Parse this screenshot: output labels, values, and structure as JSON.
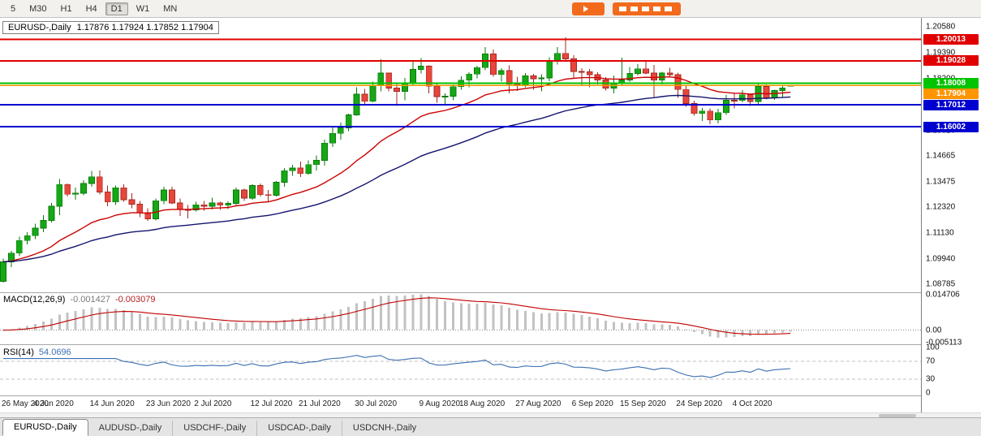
{
  "toolbar": {
    "timeframes": [
      "5",
      "M30",
      "H1",
      "H4",
      "D1",
      "W1",
      "MN"
    ],
    "selected": "D1"
  },
  "chart": {
    "title": "EURUSD-,Daily",
    "ohlc_text": "1.17876 1.17924 1.17852 1.17904",
    "price_axis_labels": [
      "1.20580",
      "1.19390",
      "1.18200",
      "1.17010",
      "1.15820",
      "1.14665",
      "1.13475",
      "1.12320",
      "1.11130",
      "1.09940",
      "1.08785"
    ]
  },
  "levels": [
    {
      "value": 1.20013,
      "label": "1.20013",
      "color": "#e00000",
      "width": 2
    },
    {
      "value": 1.19028,
      "label": "1.19028",
      "color": "#e00000",
      "width": 2
    },
    {
      "value": 1.18008,
      "label": "1.18008",
      "color": "#00c400",
      "width": 2
    },
    {
      "value": 1.17904,
      "label": "1.17904",
      "color": "#ff9500",
      "width": 1.5,
      "current": true
    },
    {
      "value": 1.17012,
      "label": "1.17012",
      "color": "#0000d0",
      "width": 2
    },
    {
      "value": 1.16002,
      "label": "1.16002",
      "color": "#0000d0",
      "width": 2
    }
  ],
  "chart_data": {
    "type": "candlestick",
    "title": "EURUSD- Daily",
    "symbol": "EURUSD-",
    "timeframe": "Daily",
    "ylim": [
      1.084,
      1.21
    ],
    "overlays": [
      {
        "name": "ma-fast",
        "period": 20,
        "color": "#cc0000"
      },
      {
        "name": "ma-slow",
        "period": 45,
        "color": "#14146e"
      }
    ],
    "candles": [
      [
        1.089,
        1.0995,
        1.0885,
        1.098
      ],
      [
        1.098,
        1.103,
        1.0955,
        1.102
      ],
      [
        1.102,
        1.1095,
        1.1005,
        1.1078
      ],
      [
        1.1078,
        1.1115,
        1.106,
        1.11
      ],
      [
        1.11,
        1.1155,
        1.1085,
        1.1135
      ],
      [
        1.1135,
        1.1195,
        1.1115,
        1.117
      ],
      [
        1.117,
        1.125,
        1.116,
        1.1235
      ],
      [
        1.1235,
        1.136,
        1.1195,
        1.1335
      ],
      [
        1.1335,
        1.134,
        1.128,
        1.129
      ],
      [
        1.129,
        1.132,
        1.1265,
        1.1295
      ],
      [
        1.1295,
        1.1355,
        1.1285,
        1.134
      ],
      [
        1.134,
        1.1398,
        1.1325,
        1.137
      ],
      [
        1.137,
        1.14,
        1.129,
        1.13
      ],
      [
        1.13,
        1.133,
        1.1235,
        1.1255
      ],
      [
        1.1255,
        1.133,
        1.124,
        1.132
      ],
      [
        1.132,
        1.1335,
        1.1255,
        1.1265
      ],
      [
        1.1265,
        1.1295,
        1.1225,
        1.1245
      ],
      [
        1.1245,
        1.126,
        1.1185,
        1.1205
      ],
      [
        1.1205,
        1.1225,
        1.1168,
        1.1177
      ],
      [
        1.1177,
        1.127,
        1.117,
        1.126
      ],
      [
        1.126,
        1.1325,
        1.1245,
        1.131
      ],
      [
        1.131,
        1.1325,
        1.1245,
        1.125
      ],
      [
        1.125,
        1.127,
        1.119,
        1.122
      ],
      [
        1.122,
        1.124,
        1.118,
        1.1218
      ],
      [
        1.1218,
        1.1255,
        1.121,
        1.1242
      ],
      [
        1.1242,
        1.126,
        1.1215,
        1.1235
      ],
      [
        1.1235,
        1.1275,
        1.122,
        1.125
      ],
      [
        1.125,
        1.1255,
        1.1218,
        1.124
      ],
      [
        1.124,
        1.1258,
        1.1222,
        1.1248
      ],
      [
        1.1248,
        1.132,
        1.124,
        1.131
      ],
      [
        1.131,
        1.1315,
        1.126,
        1.1272
      ],
      [
        1.1272,
        1.1335,
        1.1265,
        1.133
      ],
      [
        1.133,
        1.134,
        1.128,
        1.1288
      ],
      [
        1.1288,
        1.131,
        1.1255,
        1.1285
      ],
      [
        1.1285,
        1.135,
        1.128,
        1.1345
      ],
      [
        1.1345,
        1.141,
        1.1325,
        1.1398
      ],
      [
        1.1398,
        1.1425,
        1.1375,
        1.141
      ],
      [
        1.141,
        1.144,
        1.137,
        1.1385
      ],
      [
        1.1385,
        1.1445,
        1.138,
        1.1426
      ],
      [
        1.1426,
        1.1468,
        1.14,
        1.1446
      ],
      [
        1.1446,
        1.154,
        1.1422,
        1.1525
      ],
      [
        1.1525,
        1.1601,
        1.1507,
        1.157
      ],
      [
        1.157,
        1.162,
        1.154,
        1.1595
      ],
      [
        1.1595,
        1.166,
        1.158,
        1.1655
      ],
      [
        1.1655,
        1.1781,
        1.165,
        1.175
      ],
      [
        1.175,
        1.1773,
        1.17,
        1.1717
      ],
      [
        1.1717,
        1.1807,
        1.1712,
        1.179
      ],
      [
        1.179,
        1.1909,
        1.1762,
        1.1847
      ],
      [
        1.1847,
        1.1849,
        1.1762,
        1.1778
      ],
      [
        1.1778,
        1.1797,
        1.1696,
        1.1763
      ],
      [
        1.1763,
        1.1824,
        1.1721,
        1.1803
      ],
      [
        1.1803,
        1.1906,
        1.1793,
        1.1863
      ],
      [
        1.1863,
        1.1916,
        1.1844,
        1.1878
      ],
      [
        1.1878,
        1.1882,
        1.1754,
        1.1786
      ],
      [
        1.1786,
        1.18,
        1.171,
        1.1738
      ],
      [
        1.1738,
        1.1754,
        1.1698,
        1.174
      ],
      [
        1.174,
        1.1795,
        1.1722,
        1.1784
      ],
      [
        1.1784,
        1.1831,
        1.177,
        1.1814
      ],
      [
        1.1814,
        1.1851,
        1.1782,
        1.1842
      ],
      [
        1.1842,
        1.188,
        1.1822,
        1.1872
      ],
      [
        1.1872,
        1.1966,
        1.186,
        1.1934
      ],
      [
        1.1934,
        1.1954,
        1.183,
        1.184
      ],
      [
        1.184,
        1.1869,
        1.1808,
        1.1858
      ],
      [
        1.1858,
        1.1882,
        1.1754,
        1.1796
      ],
      [
        1.1796,
        1.183,
        1.1765,
        1.179
      ],
      [
        1.179,
        1.1846,
        1.1782,
        1.1833
      ],
      [
        1.1833,
        1.1842,
        1.177,
        1.182
      ],
      [
        1.182,
        1.184,
        1.1763,
        1.1824
      ],
      [
        1.1824,
        1.192,
        1.181,
        1.1903
      ],
      [
        1.1903,
        1.1965,
        1.1885,
        1.1937
      ],
      [
        1.1937,
        1.2011,
        1.19,
        1.1912
      ],
      [
        1.1912,
        1.1928,
        1.1823,
        1.1854
      ],
      [
        1.1854,
        1.1868,
        1.1789,
        1.1852
      ],
      [
        1.1852,
        1.1865,
        1.1781,
        1.1839
      ],
      [
        1.1839,
        1.185,
        1.1795,
        1.1815
      ],
      [
        1.1815,
        1.1828,
        1.1766,
        1.1777
      ],
      [
        1.1777,
        1.1835,
        1.1753,
        1.1801
      ],
      [
        1.1801,
        1.1917,
        1.179,
        1.1815
      ],
      [
        1.1815,
        1.1875,
        1.1805,
        1.1845
      ],
      [
        1.1845,
        1.1888,
        1.1835,
        1.1866
      ],
      [
        1.1866,
        1.19,
        1.184,
        1.1846
      ],
      [
        1.1846,
        1.1884,
        1.1737,
        1.1815
      ],
      [
        1.1815,
        1.1852,
        1.1795,
        1.1847
      ],
      [
        1.1847,
        1.1871,
        1.1827,
        1.1839
      ],
      [
        1.1839,
        1.1848,
        1.1732,
        1.1771
      ],
      [
        1.1771,
        1.179,
        1.1692,
        1.1707
      ],
      [
        1.1707,
        1.1719,
        1.1651,
        1.1661
      ],
      [
        1.1661,
        1.1686,
        1.1626,
        1.1672
      ],
      [
        1.1672,
        1.1685,
        1.1612,
        1.1631
      ],
      [
        1.1631,
        1.1683,
        1.1615,
        1.1665
      ],
      [
        1.1665,
        1.1745,
        1.1655,
        1.1722
      ],
      [
        1.1722,
        1.1755,
        1.1685,
        1.1721
      ],
      [
        1.1721,
        1.1769,
        1.1712,
        1.1747
      ],
      [
        1.1747,
        1.1752,
        1.1695,
        1.1716
      ],
      [
        1.1716,
        1.1798,
        1.1705,
        1.1785
      ],
      [
        1.1785,
        1.1795,
        1.1725,
        1.1734
      ],
      [
        1.1734,
        1.177,
        1.1724,
        1.1766
      ],
      [
        1.1766,
        1.1789,
        1.1733,
        1.1778
      ],
      [
        1.17876,
        1.17924,
        1.17852,
        1.17904
      ]
    ],
    "date_ticks": [
      {
        "i": 0,
        "label": "26 May 2020"
      },
      {
        "i": 7,
        "label": "4 Jun 2020"
      },
      {
        "i": 14,
        "label": "14 Jun 2020"
      },
      {
        "i": 21,
        "label": "23 Jun 2020"
      },
      {
        "i": 27,
        "label": "2 Jul 2020"
      },
      {
        "i": 34,
        "label": "12 Jul 2020"
      },
      {
        "i": 40,
        "label": "21 Jul 2020"
      },
      {
        "i": 47,
        "label": "30 Jul 2020"
      },
      {
        "i": 55,
        "label": "9 Aug 2020"
      },
      {
        "i": 60,
        "label": "18 Aug 2020"
      },
      {
        "i": 67,
        "label": "27 Aug 2020"
      },
      {
        "i": 74,
        "label": "6 Sep 2020"
      },
      {
        "i": 80,
        "label": "15 Sep 2020"
      },
      {
        "i": 87,
        "label": "24 Sep 2020"
      },
      {
        "i": 94,
        "label": "4 Oct 2020"
      }
    ]
  },
  "macd": {
    "label": "MACD(12,26,9)",
    "value_main": "-0.001427",
    "value_signal": "-0.003079",
    "params": {
      "fast": 12,
      "slow": 26,
      "signal": 9
    },
    "ylim": [
      -0.0058,
      0.0152
    ],
    "axis_labels": [
      "0.014706",
      "0.00",
      "-0.005113"
    ]
  },
  "rsi": {
    "label": "RSI(14)",
    "value": "54.0696",
    "period": 14,
    "levels": [
      70,
      30
    ],
    "axis_labels": [
      "100",
      "70",
      "30",
      "0"
    ]
  },
  "tabs": [
    {
      "label": "EURUSD-,Daily",
      "active": true
    },
    {
      "label": "AUDUSD-,Daily",
      "active": false
    },
    {
      "label": "USDCHF-,Daily",
      "active": false
    },
    {
      "label": "USDCAD-,Daily",
      "active": false
    },
    {
      "label": "USDCNH-,Daily",
      "active": false
    }
  ],
  "colors": {
    "candle_up": "#16a816",
    "candle_up_border": "#0a7a0a",
    "candle_down": "#e8463c",
    "candle_down_border": "#a3271f",
    "ma_fast": "#cc0000",
    "ma_slow": "#14146e",
    "macd_hist": "#c2c2c2",
    "macd_signal": "#c00000",
    "rsi_line": "#3c6fb0",
    "brand_orange": "#f26a1b"
  }
}
